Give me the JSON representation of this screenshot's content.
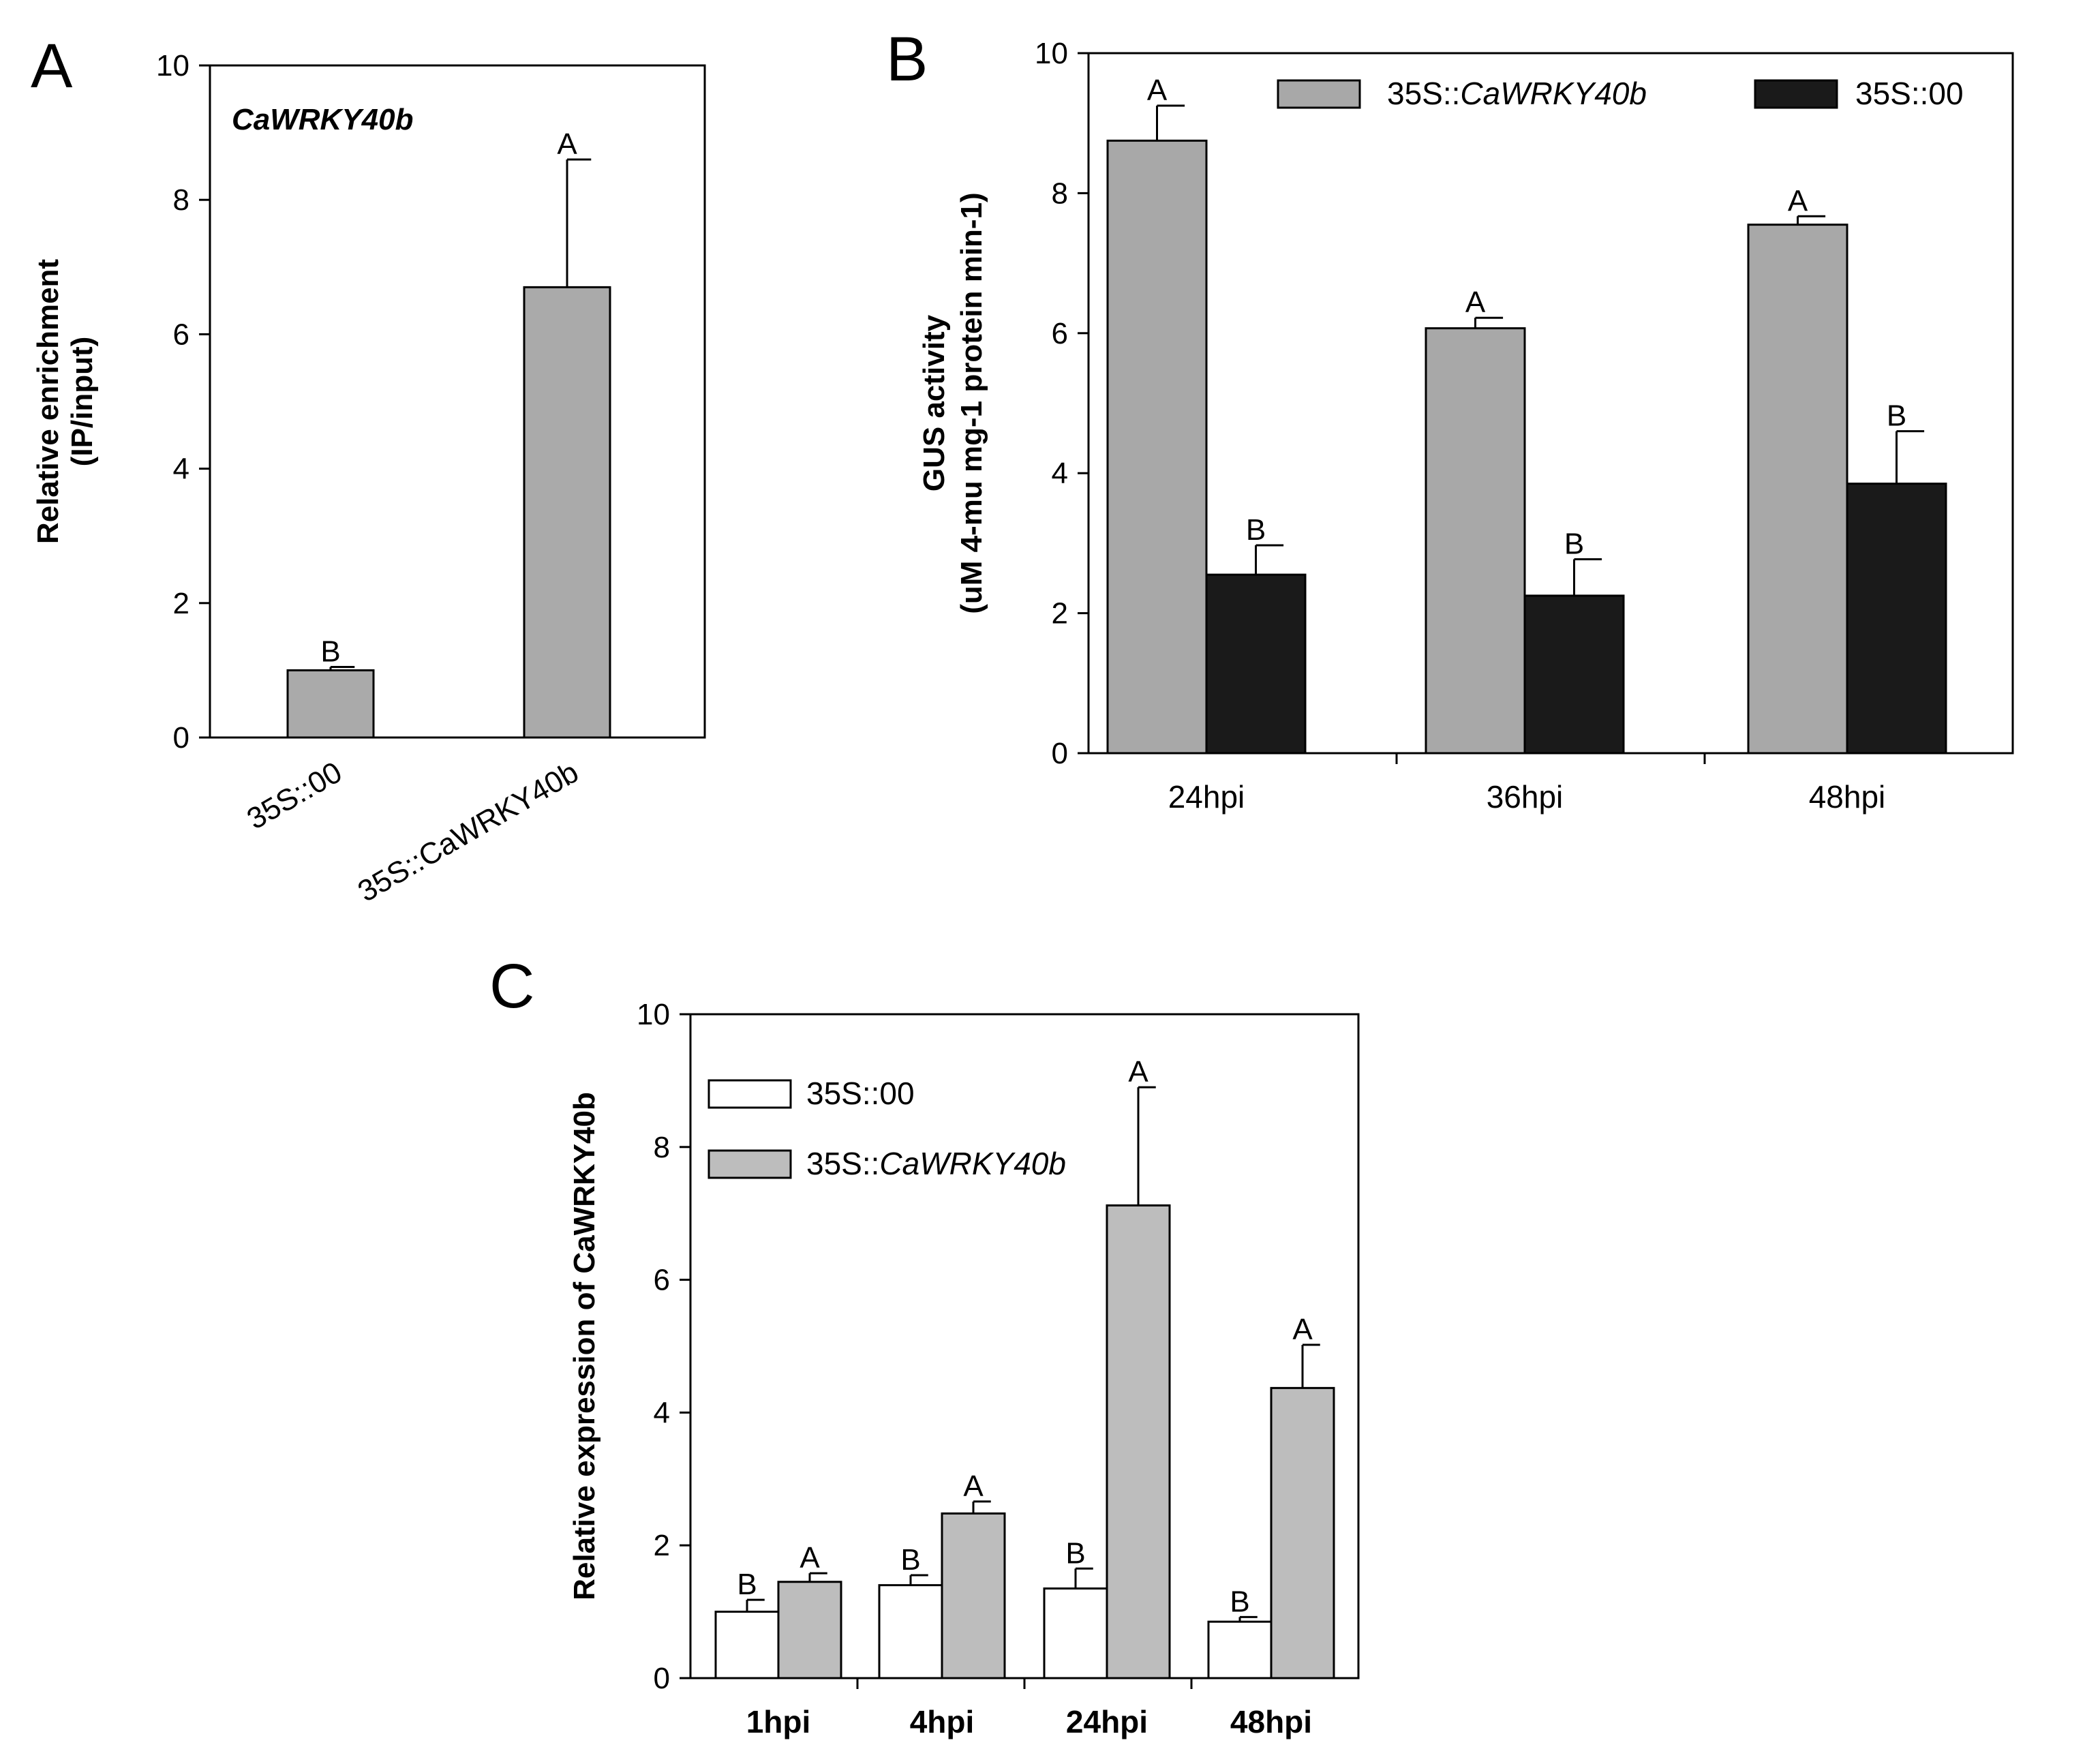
{
  "chart_data": [
    {
      "panel": "A",
      "type": "bar",
      "title": "CaWRKY40b",
      "ylabel": [
        "Relative enrichment",
        "(IP/input)"
      ],
      "xlabel": "",
      "ylim": [
        0,
        10
      ],
      "yticks": [
        0,
        2,
        4,
        6,
        8,
        10
      ],
      "categories": [
        "35S::00",
        "35S::CaWRKY40b"
      ],
      "series": [
        {
          "name": "",
          "color": "#aaaaaa",
          "values": [
            1.0,
            6.7
          ],
          "errors": [
            0.05,
            1.9
          ],
          "labels": [
            "B",
            "A"
          ]
        }
      ]
    },
    {
      "panel": "B",
      "type": "bar",
      "title": "",
      "ylabel": [
        "GUS activity",
        "(uM 4-mu mg-1 protein min-1)"
      ],
      "xlabel": "",
      "ylim": [
        0,
        10
      ],
      "yticks": [
        0,
        2,
        4,
        6,
        8,
        10
      ],
      "categories": [
        "24hpi",
        "36hpi",
        "48hpi"
      ],
      "legend": {
        "position": "top",
        "items": [
          [
            "35S::",
            "CaWRKY40b"
          ],
          [
            "35S::00",
            ""
          ]
        ]
      },
      "series": [
        {
          "name": "35S::CaWRKY40b",
          "color": "#a8a8a8",
          "values": [
            8.75,
            6.07,
            7.55
          ],
          "errors": [
            0.5,
            0.15,
            0.12
          ],
          "labels": [
            "A",
            "A",
            "A"
          ]
        },
        {
          "name": "35S::00",
          "color": "#1a1a1a",
          "values": [
            2.55,
            2.25,
            3.85
          ],
          "errors": [
            0.42,
            0.52,
            0.75
          ],
          "labels": [
            "B",
            "B",
            "B"
          ]
        }
      ]
    },
    {
      "panel": "C",
      "type": "bar",
      "title": "",
      "ylabel": [
        "Relative expression of CaWRKY40b"
      ],
      "xlabel": "",
      "ylim": [
        0,
        10
      ],
      "yticks": [
        0,
        2,
        4,
        6,
        8,
        10
      ],
      "categories": [
        "1hpi",
        "4hpi",
        "24hpi",
        "48hpi"
      ],
      "legend": {
        "position": "top-left",
        "items": [
          [
            "35S::00",
            ""
          ],
          [
            "35S::",
            "CaWRKY40b"
          ]
        ]
      },
      "series": [
        {
          "name": "35S::00",
          "color": "#ffffff",
          "values": [
            1.0,
            1.4,
            1.35,
            0.85
          ],
          "errors": [
            0.18,
            0.15,
            0.3,
            0.07
          ],
          "labels": [
            "B",
            "B",
            "B",
            "B"
          ]
        },
        {
          "name": "35S::CaWRKY40b",
          "color": "#bdbdbd",
          "values": [
            1.45,
            2.48,
            7.12,
            4.37
          ],
          "errors": [
            0.13,
            0.18,
            1.78,
            0.65
          ],
          "labels": [
            "A",
            "A",
            "A",
            "A"
          ]
        }
      ]
    }
  ]
}
